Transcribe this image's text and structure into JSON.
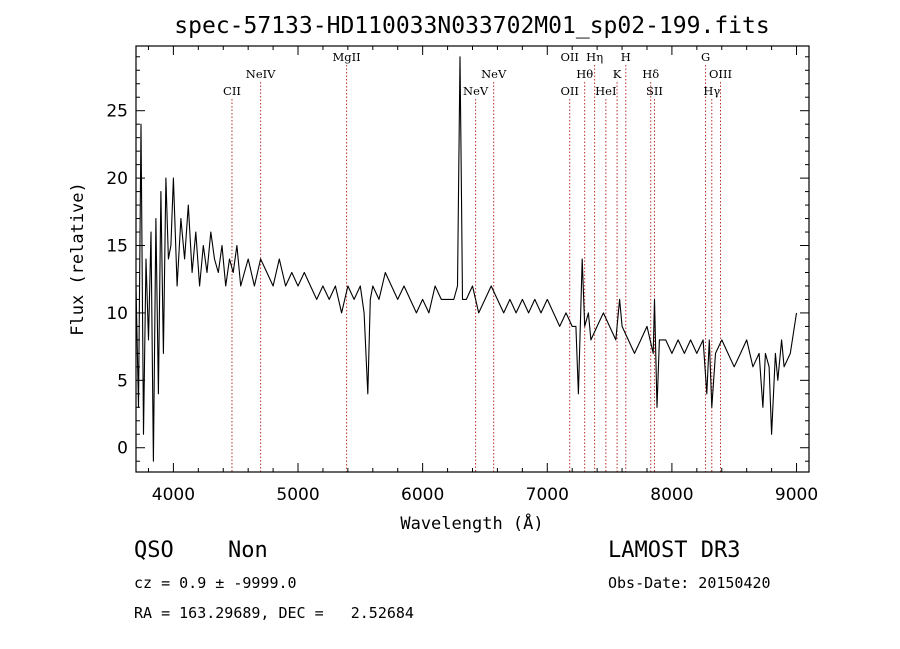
{
  "chart_data": {
    "type": "line",
    "title": "spec-57133-HD110033N033702M01_sp02-199.fits",
    "xlabel": "Wavelength (Å)",
    "ylabel": "Flux (relative)",
    "xlim": [
      3700,
      9100
    ],
    "ylim": [
      -1.8,
      29.8
    ],
    "xticks": [
      4000,
      5000,
      6000,
      7000,
      8000,
      9000
    ],
    "yticks": [
      0,
      5,
      10,
      15,
      20,
      25
    ],
    "grid": false,
    "line_color": "#000000",
    "marker_color": "#b5302a",
    "series": [
      {
        "x": [
          3700,
          3720,
          3740,
          3760,
          3780,
          3800,
          3820,
          3840,
          3860,
          3880,
          3900,
          3920,
          3940,
          3960,
          3980,
          4000,
          4030,
          4060,
          4090,
          4120,
          4150,
          4180,
          4210,
          4240,
          4270,
          4300,
          4330,
          4360,
          4390,
          4420,
          4450,
          4480,
          4510,
          4540,
          4570,
          4600,
          4650,
          4700,
          4750,
          4800,
          4850,
          4900,
          4950,
          5000,
          5050,
          5100,
          5150,
          5200,
          5250,
          5300,
          5350,
          5400,
          5450,
          5500,
          5530,
          5560,
          5580,
          5600,
          5650,
          5700,
          5750,
          5800,
          5850,
          5900,
          5950,
          6000,
          6050,
          6100,
          6150,
          6200,
          6250,
          6280,
          6300,
          6310,
          6320,
          6350,
          6400,
          6450,
          6500,
          6550,
          6600,
          6650,
          6700,
          6750,
          6800,
          6850,
          6900,
          6950,
          7000,
          7050,
          7100,
          7150,
          7200,
          7230,
          7250,
          7280,
          7300,
          7330,
          7350,
          7400,
          7450,
          7500,
          7550,
          7580,
          7600,
          7650,
          7700,
          7750,
          7800,
          7850,
          7860,
          7880,
          7900,
          7950,
          8000,
          8050,
          8100,
          8150,
          8200,
          8250,
          8280,
          8300,
          8320,
          8350,
          8400,
          8450,
          8500,
          8550,
          8600,
          8650,
          8700,
          8730,
          8750,
          8780,
          8800,
          8830,
          8850,
          8880,
          8900,
          8950,
          9000
        ],
        "y": [
          12,
          3,
          24,
          1,
          14,
          8,
          16,
          -1,
          17,
          4,
          19,
          7,
          20,
          14,
          15,
          20,
          12,
          17,
          14,
          18,
          13,
          16,
          12,
          15,
          13,
          16,
          14,
          13,
          15,
          12,
          14,
          13,
          15,
          12,
          13,
          14,
          12,
          14,
          13,
          12,
          14,
          12,
          13,
          12,
          13,
          12,
          11,
          12,
          11,
          12,
          10,
          12,
          11,
          12,
          10,
          4,
          11,
          12,
          11,
          13,
          12,
          11,
          12,
          11,
          10,
          11,
          10,
          12,
          11,
          11,
          11,
          12,
          29,
          20,
          11,
          11,
          12,
          10,
          11,
          12,
          11,
          10,
          11,
          10,
          11,
          10,
          11,
          10,
          11,
          10,
          9,
          10,
          9,
          9,
          4,
          14,
          9,
          10,
          8,
          9,
          10,
          9,
          8,
          11,
          9,
          8,
          7,
          8,
          9,
          7,
          11,
          3,
          8,
          8,
          7,
          8,
          7,
          8,
          7,
          8,
          4,
          8,
          3,
          7,
          8,
          7,
          6,
          7,
          8,
          6,
          7,
          3,
          7,
          6,
          1,
          7,
          5,
          8,
          6,
          7,
          10
        ]
      }
    ],
    "lines": [
      {
        "name": "CII",
        "wl": 4470,
        "row": 2
      },
      {
        "name": "NeIV",
        "wl": 4700,
        "row": 1
      },
      {
        "name": "MgII",
        "wl": 5390,
        "row": 0
      },
      {
        "name": "NeV",
        "wl": 6425,
        "row": 2
      },
      {
        "name": "NeV",
        "wl": 6570,
        "row": 1
      },
      {
        "name": "OII",
        "wl": 7180,
        "row": 2
      },
      {
        "name": "OII",
        "wl": 7180,
        "row": 0
      },
      {
        "name": "Hθ",
        "wl": 7300,
        "row": 1
      },
      {
        "name": "Hη",
        "wl": 7380,
        "row": 0
      },
      {
        "name": "HeI",
        "wl": 7470,
        "row": 2
      },
      {
        "name": "K",
        "wl": 7560,
        "row": 1
      },
      {
        "name": "H",
        "wl": 7630,
        "row": 0
      },
      {
        "name": "Hδ",
        "wl": 7830,
        "row": 1
      },
      {
        "name": "SII",
        "wl": 7860,
        "row": 2
      },
      {
        "name": "G",
        "wl": 8270,
        "row": 0
      },
      {
        "name": "Hγ",
        "wl": 8320,
        "row": 2
      },
      {
        "name": "OIII",
        "wl": 8390,
        "row": 1
      }
    ]
  },
  "info": {
    "class": "QSO",
    "subclass": "Non",
    "release": "LAMOST DR3",
    "cz": "cz = 0.9 ± -9999.0",
    "obs_date": "Obs-Date: 20150420",
    "radec": "RA = 163.29689, DEC =   2.52684"
  }
}
